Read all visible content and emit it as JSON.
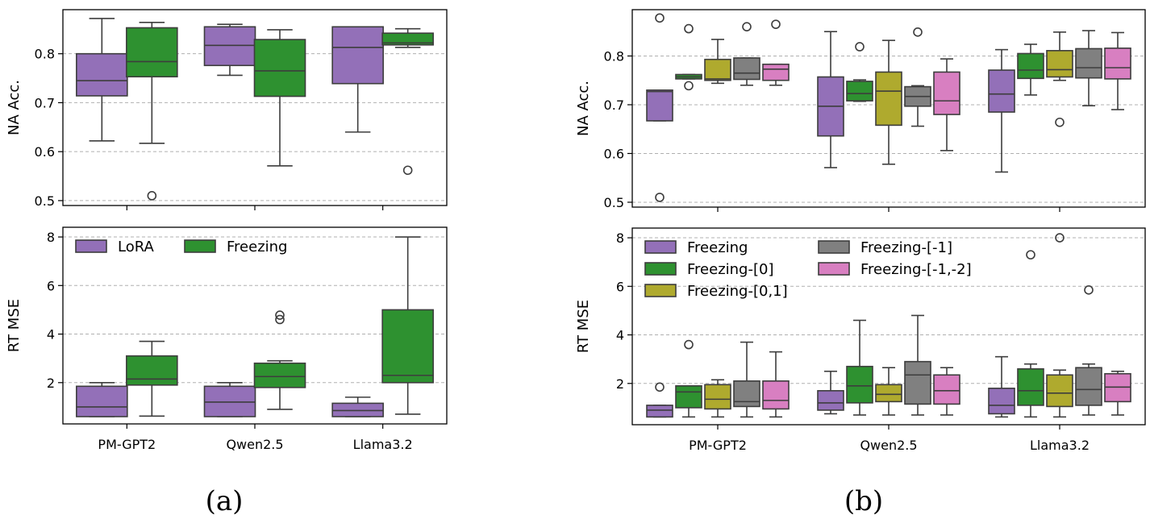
{
  "captions": [
    "(a)",
    "(b)"
  ],
  "colors": {
    "LoRA": "#9370b8",
    "Freezing": "#2e9130",
    "Freezing-[0]": "#2e9130",
    "Freezing-[0,1]": "#afaa2e",
    "Freezing-[-1]": "#808080",
    "Freezing-[-1,-2]": "#d87fc1",
    "Freezing-b": "#9370b8"
  },
  "chart_data": [
    {
      "type": "box",
      "panel": "a-top",
      "ylabel": "NA Acc.",
      "ylim": [
        0.49,
        0.89
      ],
      "yticks": [
        0.5,
        0.6,
        0.7,
        0.8
      ],
      "categories": [
        "PM-GPT2",
        "Qwen2.5",
        "Llama3.2"
      ],
      "grid": true,
      "series": [
        {
          "color_key": "LoRA",
          "boxes": [
            {
              "whislo": 0.622,
              "q1": 0.714,
              "med": 0.745,
              "q3": 0.8,
              "whishi": 0.872,
              "fliers": []
            },
            {
              "whislo": 0.756,
              "q1": 0.776,
              "med": 0.817,
              "q3": 0.855,
              "whishi": 0.86,
              "fliers": []
            },
            {
              "whislo": 0.64,
              "q1": 0.739,
              "med": 0.813,
              "q3": 0.855,
              "whishi": 0.855,
              "fliers": []
            }
          ]
        },
        {
          "color_key": "Freezing",
          "boxes": [
            {
              "whislo": 0.617,
              "q1": 0.753,
              "med": 0.784,
              "q3": 0.853,
              "whishi": 0.864,
              "fliers": [
                0.51
              ]
            },
            {
              "whislo": 0.571,
              "q1": 0.713,
              "med": 0.765,
              "q3": 0.829,
              "whishi": 0.849,
              "fliers": []
            },
            {
              "whislo": 0.813,
              "q1": 0.818,
              "med": 0.822,
              "q3": 0.842,
              "whishi": 0.851,
              "fliers": [
                0.562
              ]
            }
          ]
        }
      ]
    },
    {
      "type": "box",
      "panel": "a-bottom",
      "ylabel": "RT MSE",
      "ylim": [
        0.3,
        8.4
      ],
      "yticks": [
        2,
        4,
        6,
        8
      ],
      "categories": [
        "PM-GPT2",
        "Qwen2.5",
        "Llama3.2"
      ],
      "grid": true,
      "legend": {
        "placement": "top-left",
        "entries": [
          "LoRA",
          "Freezing"
        ]
      },
      "series": [
        {
          "color_key": "LoRA",
          "boxes": [
            {
              "whislo": 0.6,
              "q1": 0.6,
              "med": 1.0,
              "q3": 1.85,
              "whishi": 2.0,
              "fliers": []
            },
            {
              "whislo": 0.6,
              "q1": 0.6,
              "med": 1.2,
              "q3": 1.85,
              "whishi": 2.0,
              "fliers": []
            },
            {
              "whislo": 0.6,
              "q1": 0.6,
              "med": 0.85,
              "q3": 1.15,
              "whishi": 1.4,
              "fliers": []
            }
          ]
        },
        {
          "color_key": "Freezing",
          "boxes": [
            {
              "whislo": 0.62,
              "q1": 1.9,
              "med": 2.15,
              "q3": 3.1,
              "whishi": 3.7,
              "fliers": []
            },
            {
              "whislo": 0.9,
              "q1": 1.8,
              "med": 2.25,
              "q3": 2.8,
              "whishi": 2.9,
              "fliers": [
                4.6,
                4.78
              ]
            },
            {
              "whislo": 0.7,
              "q1": 2.0,
              "med": 2.3,
              "q3": 5.0,
              "whishi": 8.0,
              "fliers": []
            }
          ]
        }
      ]
    },
    {
      "type": "box",
      "panel": "b-top",
      "ylabel": "NA Acc.",
      "ylim": [
        0.49,
        0.895
      ],
      "yticks": [
        0.5,
        0.6,
        0.7,
        0.8
      ],
      "categories": [
        "PM-GPT2",
        "Qwen2.5",
        "Llama3.2"
      ],
      "grid": true,
      "series": [
        {
          "color_key": "Freezing-b",
          "boxes": [
            {
              "whislo": 0.667,
              "q1": 0.667,
              "med": 0.727,
              "q3": 0.73,
              "whishi": 0.73,
              "fliers": [
                0.51,
                0.878
              ]
            },
            {
              "whislo": 0.571,
              "q1": 0.636,
              "med": 0.697,
              "q3": 0.757,
              "whishi": 0.85,
              "fliers": []
            },
            {
              "whislo": 0.562,
              "q1": 0.685,
              "med": 0.722,
              "q3": 0.771,
              "whishi": 0.813,
              "fliers": []
            }
          ]
        },
        {
          "color_key": "Freezing-[0]",
          "boxes": [
            {
              "whislo": 0.753,
              "q1": 0.753,
              "med": 0.757,
              "q3": 0.762,
              "whishi": 0.762,
              "fliers": [
                0.739,
                0.856
              ]
            },
            {
              "whislo": 0.707,
              "q1": 0.708,
              "med": 0.723,
              "q3": 0.748,
              "whishi": 0.751,
              "fliers": [
                0.819
              ]
            },
            {
              "whislo": 0.72,
              "q1": 0.754,
              "med": 0.771,
              "q3": 0.805,
              "whishi": 0.824,
              "fliers": []
            }
          ]
        },
        {
          "color_key": "Freezing-[0,1]",
          "boxes": [
            {
              "whislo": 0.744,
              "q1": 0.75,
              "med": 0.753,
              "q3": 0.793,
              "whishi": 0.834,
              "fliers": []
            },
            {
              "whislo": 0.578,
              "q1": 0.658,
              "med": 0.728,
              "q3": 0.767,
              "whishi": 0.832,
              "fliers": []
            },
            {
              "whislo": 0.75,
              "q1": 0.757,
              "med": 0.772,
              "q3": 0.811,
              "whishi": 0.849,
              "fliers": [
                0.664
              ]
            }
          ]
        },
        {
          "color_key": "Freezing-[-1]",
          "boxes": [
            {
              "whislo": 0.74,
              "q1": 0.752,
              "med": 0.765,
              "q3": 0.796,
              "whishi": 0.796,
              "fliers": [
                0.86
              ]
            },
            {
              "whislo": 0.656,
              "q1": 0.697,
              "med": 0.717,
              "q3": 0.737,
              "whishi": 0.739,
              "fliers": [
                0.849
              ]
            },
            {
              "whislo": 0.698,
              "q1": 0.755,
              "med": 0.776,
              "q3": 0.815,
              "whishi": 0.852,
              "fliers": []
            }
          ]
        },
        {
          "color_key": "Freezing-[-1,-2]",
          "boxes": [
            {
              "whislo": 0.74,
              "q1": 0.75,
              "med": 0.773,
              "q3": 0.783,
              "whishi": 0.783,
              "fliers": [
                0.865
              ]
            },
            {
              "whislo": 0.606,
              "q1": 0.68,
              "med": 0.708,
              "q3": 0.767,
              "whishi": 0.794,
              "fliers": []
            },
            {
              "whislo": 0.69,
              "q1": 0.753,
              "med": 0.776,
              "q3": 0.816,
              "whishi": 0.848,
              "fliers": []
            }
          ]
        }
      ]
    },
    {
      "type": "box",
      "panel": "b-bottom",
      "ylabel": "RT MSE",
      "ylim": [
        0.3,
        8.4
      ],
      "yticks": [
        2,
        4,
        6,
        8
      ],
      "categories": [
        "PM-GPT2",
        "Qwen2.5",
        "Llama3.2"
      ],
      "grid": true,
      "legend": {
        "placement": "top-left",
        "columns": 2,
        "entries": [
          "Freezing",
          "Freezing-[0]",
          "Freezing-[0,1]",
          "Freezing-[-1]",
          "Freezing-[-1,-2]"
        ]
      },
      "series": [
        {
          "color_key": "Freezing-b",
          "boxes": [
            {
              "whislo": 0.62,
              "q1": 0.62,
              "med": 0.9,
              "q3": 1.1,
              "whishi": 1.1,
              "fliers": [
                1.85
              ]
            },
            {
              "whislo": 0.75,
              "q1": 0.9,
              "med": 1.2,
              "q3": 1.7,
              "whishi": 2.5,
              "fliers": []
            },
            {
              "whislo": 0.62,
              "q1": 0.75,
              "med": 1.1,
              "q3": 1.8,
              "whishi": 3.1,
              "fliers": []
            }
          ]
        },
        {
          "color_key": "Freezing-[0]",
          "boxes": [
            {
              "whislo": 0.62,
              "q1": 1.0,
              "med": 1.65,
              "q3": 1.9,
              "whishi": 1.9,
              "fliers": [
                3.6
              ]
            },
            {
              "whislo": 0.7,
              "q1": 1.2,
              "med": 1.9,
              "q3": 2.7,
              "whishi": 4.6,
              "fliers": []
            },
            {
              "whislo": 0.62,
              "q1": 1.1,
              "med": 1.7,
              "q3": 2.6,
              "whishi": 2.8,
              "fliers": [
                7.3
              ]
            }
          ]
        },
        {
          "color_key": "Freezing-[0,1]",
          "boxes": [
            {
              "whislo": 0.62,
              "q1": 0.95,
              "med": 1.35,
              "q3": 1.95,
              "whishi": 2.15,
              "fliers": []
            },
            {
              "whislo": 0.7,
              "q1": 1.25,
              "med": 1.55,
              "q3": 1.95,
              "whishi": 2.65,
              "fliers": []
            },
            {
              "whislo": 0.62,
              "q1": 1.05,
              "med": 1.6,
              "q3": 2.35,
              "whishi": 2.55,
              "fliers": [
                8.0
              ]
            }
          ]
        },
        {
          "color_key": "Freezing-[-1]",
          "boxes": [
            {
              "whislo": 0.62,
              "q1": 1.05,
              "med": 1.25,
              "q3": 2.1,
              "whishi": 3.7,
              "fliers": []
            },
            {
              "whislo": 0.7,
              "q1": 1.15,
              "med": 2.35,
              "q3": 2.9,
              "whishi": 4.8,
              "fliers": []
            },
            {
              "whislo": 0.7,
              "q1": 1.1,
              "med": 1.75,
              "q3": 2.65,
              "whishi": 2.8,
              "fliers": [
                5.85
              ]
            }
          ]
        },
        {
          "color_key": "Freezing-[-1,-2]",
          "boxes": [
            {
              "whislo": 0.62,
              "q1": 0.95,
              "med": 1.3,
              "q3": 2.1,
              "whishi": 3.3,
              "fliers": []
            },
            {
              "whislo": 0.7,
              "q1": 1.15,
              "med": 1.7,
              "q3": 2.35,
              "whishi": 2.65,
              "fliers": []
            },
            {
              "whislo": 0.7,
              "q1": 1.25,
              "med": 1.85,
              "q3": 2.4,
              "whishi": 2.5,
              "fliers": []
            }
          ]
        }
      ]
    }
  ]
}
